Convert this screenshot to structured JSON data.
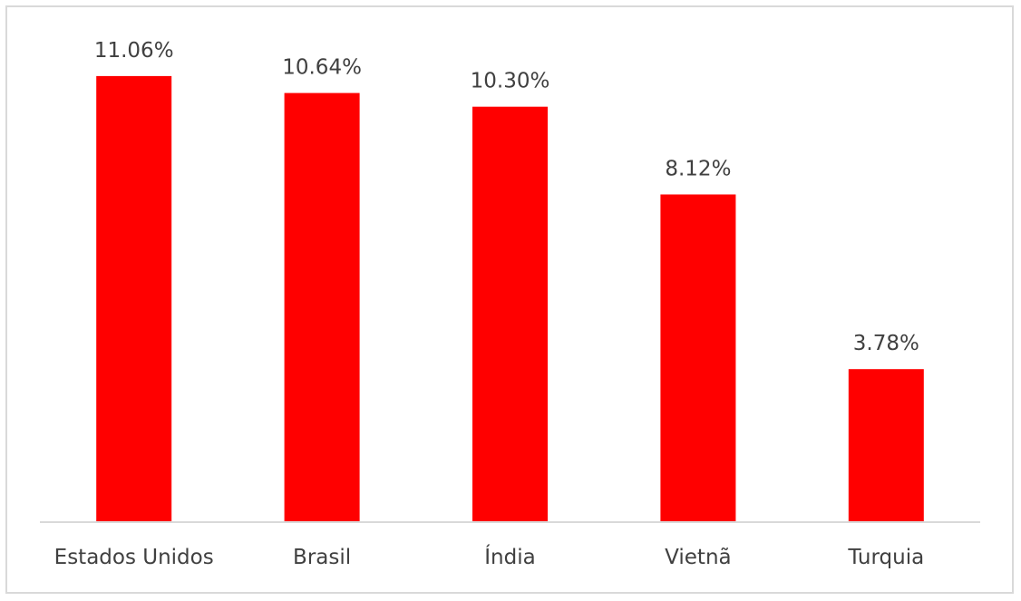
{
  "chart_data": {
    "type": "bar",
    "categories": [
      "Estados Unidos",
      "Brasil",
      "Índia",
      "Vietnã",
      "Turquia"
    ],
    "values": [
      11.06,
      10.64,
      10.3,
      8.12,
      3.78
    ],
    "data_labels": [
      "11.06%",
      "10.64%",
      "10.30%",
      "8.12%",
      "3.78%"
    ],
    "title": "",
    "xlabel": "",
    "ylabel": "",
    "ylim": [
      0,
      11.2
    ],
    "grid": false,
    "legend": "none",
    "bar_color": "#ff0000",
    "axis_color": "#d9d9d9",
    "text_color": "#404040"
  }
}
